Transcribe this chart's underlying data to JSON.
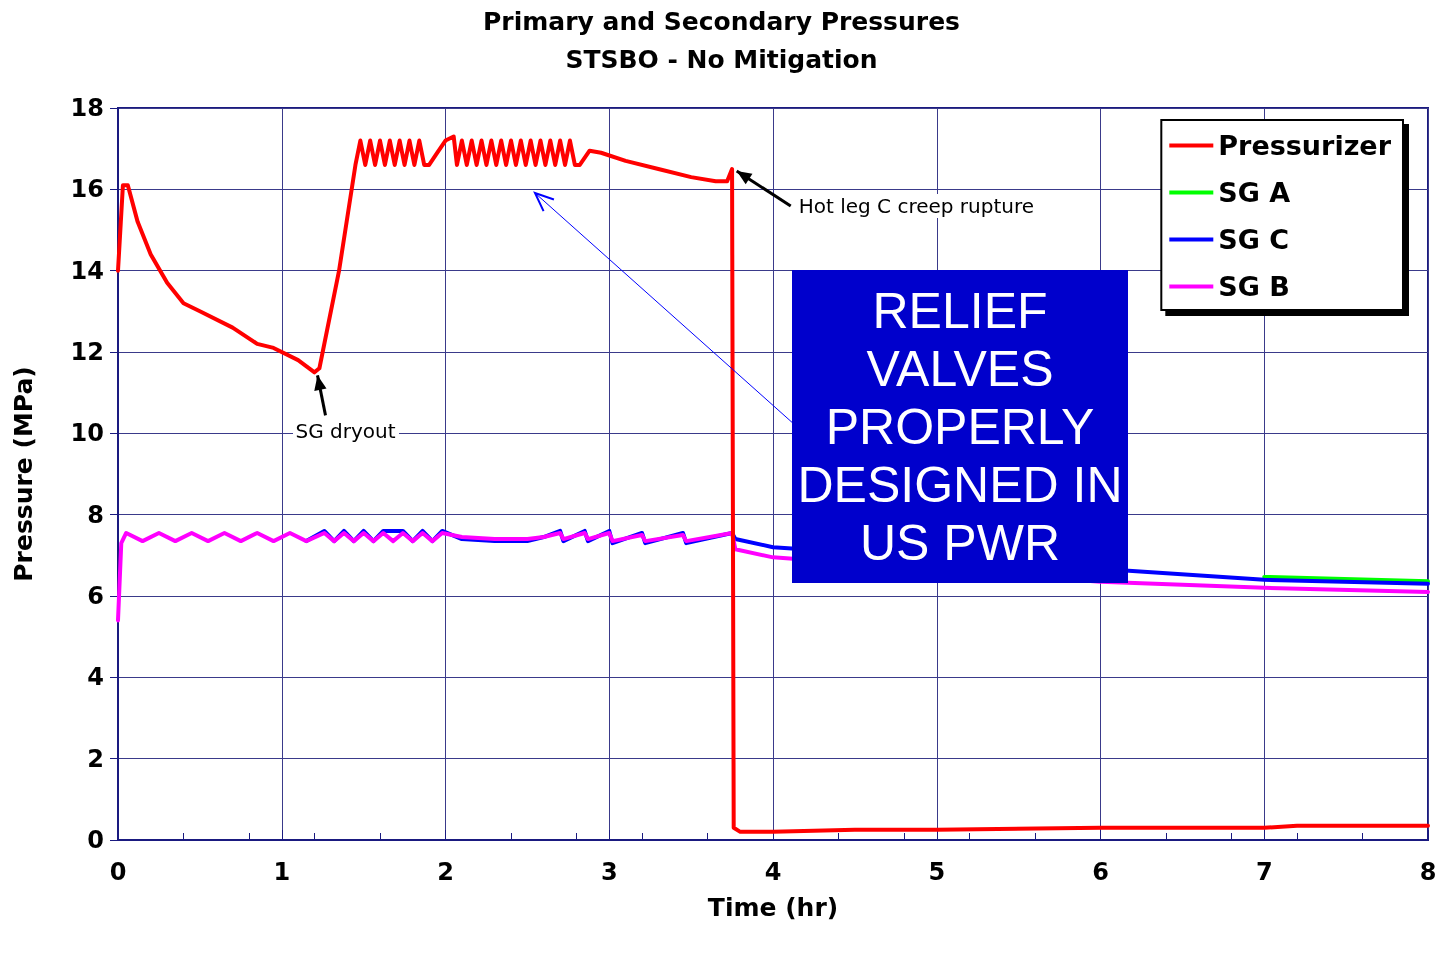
{
  "chart_data": {
    "type": "line",
    "title": "Primary and Secondary Pressures",
    "subtitle": "STSBO - No Mitigation",
    "xlabel": "Time (hr)",
    "ylabel": "Pressure (MPa)",
    "xlim": [
      0,
      8
    ],
    "xticks": [
      0,
      1,
      2,
      3,
      4,
      5,
      6,
      7,
      8
    ],
    "ylim": [
      0,
      18
    ],
    "yticks": [
      0,
      2,
      4,
      6,
      8,
      10,
      12,
      14,
      16,
      18
    ],
    "grid": true,
    "legend": "top right",
    "marker": "none",
    "line_style": "solid",
    "x": [
      0,
      0.02,
      0.05,
      0.15,
      0.25,
      0.35,
      0.45,
      0.55,
      0.65,
      0.75,
      0.85,
      0.95,
      1.05,
      1.15,
      1.26,
      1.32,
      1.38,
      1.44,
      1.5,
      1.56,
      1.62,
      1.68,
      1.74,
      1.8,
      1.86,
      1.92,
      1.98,
      2.1,
      2.3,
      2.5,
      2.6,
      2.7,
      2.72,
      2.85,
      2.87,
      3.0,
      3.02,
      3.2,
      3.22,
      3.45,
      3.47,
      3.75,
      3.77,
      4.0,
      4.5,
      5,
      6,
      7,
      8
    ],
    "series": [
      {
        "name": "Pressurizer",
        "color": "#ff0000",
        "x": [
          0,
          0.03,
          0.06,
          0.12,
          0.2,
          0.3,
          0.4,
          0.5,
          0.7,
          0.85,
          0.95,
          1.1,
          1.2,
          1.23,
          1.35,
          1.45,
          1.48,
          1.51,
          1.54,
          1.57,
          1.6,
          1.63,
          1.66,
          1.69,
          1.72,
          1.75,
          1.78,
          1.81,
          1.84,
          1.87,
          1.9,
          1.95,
          2.0,
          2.05,
          2.07,
          2.1,
          2.13,
          2.16,
          2.19,
          2.22,
          2.25,
          2.28,
          2.31,
          2.34,
          2.37,
          2.4,
          2.43,
          2.46,
          2.49,
          2.52,
          2.55,
          2.58,
          2.61,
          2.64,
          2.67,
          2.7,
          2.73,
          2.76,
          2.79,
          2.82,
          2.88,
          2.95,
          3.1,
          3.3,
          3.5,
          3.65,
          3.72,
          3.75,
          3.76,
          3.8,
          4.0,
          4.5,
          5,
          6,
          7,
          7.2,
          8
        ],
        "values": [
          14.0,
          16.1,
          16.1,
          15.2,
          14.4,
          13.7,
          13.2,
          13.0,
          12.6,
          12.2,
          12.1,
          11.8,
          11.5,
          11.6,
          14.0,
          16.6,
          17.2,
          16.6,
          17.2,
          16.6,
          17.2,
          16.6,
          17.2,
          16.6,
          17.2,
          16.6,
          17.2,
          16.6,
          17.2,
          16.6,
          16.6,
          16.9,
          17.2,
          17.3,
          16.6,
          17.2,
          16.6,
          17.2,
          16.6,
          17.2,
          16.6,
          17.2,
          16.6,
          17.2,
          16.6,
          17.2,
          16.6,
          17.2,
          16.6,
          17.2,
          16.6,
          17.2,
          16.6,
          17.2,
          16.6,
          17.2,
          16.6,
          17.2,
          16.6,
          16.6,
          16.95,
          16.9,
          16.7,
          16.5,
          16.3,
          16.2,
          16.2,
          16.5,
          0.3,
          0.2,
          0.2,
          0.25,
          0.25,
          0.3,
          0.3,
          0.35,
          0.35
        ]
      },
      {
        "name": "SG A",
        "color": "#00ff00",
        "values": [
          null,
          null,
          null,
          null,
          null,
          null,
          null,
          null,
          null,
          null,
          null,
          null,
          null,
          null,
          null,
          null,
          null,
          null,
          null,
          null,
          null,
          null,
          null,
          null,
          null,
          null,
          null,
          null,
          null,
          null,
          null,
          null,
          null,
          null,
          null,
          null,
          null,
          null,
          null,
          null,
          null,
          null,
          null,
          null,
          null,
          null,
          null,
          6.47,
          6.36
        ]
      },
      {
        "name": "SG C",
        "color": "#0000ff",
        "values": [
          null,
          null,
          null,
          null,
          null,
          null,
          null,
          null,
          null,
          null,
          null,
          null,
          null,
          7.35,
          7.6,
          7.35,
          7.6,
          7.35,
          7.6,
          7.35,
          7.6,
          null,
          7.6,
          7.35,
          7.6,
          7.35,
          7.6,
          7.4,
          7.35,
          7.35,
          7.45,
          7.6,
          7.35,
          7.6,
          7.35,
          7.6,
          7.3,
          7.55,
          7.3,
          7.55,
          7.3,
          7.55,
          7.4,
          7.2,
          null,
          null,
          null,
          6.4,
          6.3
        ]
      },
      {
        "name": "SG B",
        "color": "#ff00ff",
        "values": [
          5.4,
          7.3,
          7.55,
          7.35,
          7.55,
          7.35,
          7.55,
          7.35,
          7.55,
          7.35,
          7.55,
          7.35,
          7.55,
          7.35,
          7.55,
          7.35,
          7.55,
          7.35,
          7.55,
          7.35,
          7.55,
          7.35,
          7.55,
          7.35,
          7.55,
          7.35,
          7.55,
          7.45,
          7.4,
          7.4,
          7.45,
          7.55,
          7.4,
          7.55,
          7.4,
          7.55,
          7.35,
          7.5,
          7.35,
          7.5,
          7.35,
          7.55,
          7.15,
          6.95,
          null,
          null,
          6.35,
          6.2,
          6.1
        ]
      }
    ],
    "annotations": [
      {
        "text": "SG dryout",
        "x": 1.2,
        "y": 11.5
      },
      {
        "text": "Hot leg C creep rupture",
        "x": 3.76,
        "y": 16.5
      },
      "RELIEF VALVES PROPERLY DESIGNED IN US PWR"
    ]
  }
}
